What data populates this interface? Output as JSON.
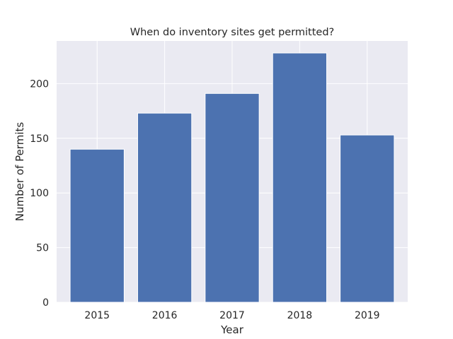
{
  "chart_data": {
    "type": "bar",
    "title": "When do inventory sites get permitted?",
    "xlabel": "Year",
    "ylabel": "Number of Permits",
    "categories": [
      "2015",
      "2016",
      "2017",
      "2018",
      "2019"
    ],
    "values": [
      140,
      173,
      191,
      228,
      153
    ],
    "ylim": [
      0,
      239
    ],
    "yticks": [
      0,
      50,
      100,
      150,
      200
    ],
    "ytick_labels": [
      "0",
      "50",
      "100",
      "150",
      "200"
    ],
    "grid": true,
    "colors": {
      "bar": "#4c72b0",
      "background": "#eaeaf2",
      "grid": "#ffffff"
    }
  }
}
